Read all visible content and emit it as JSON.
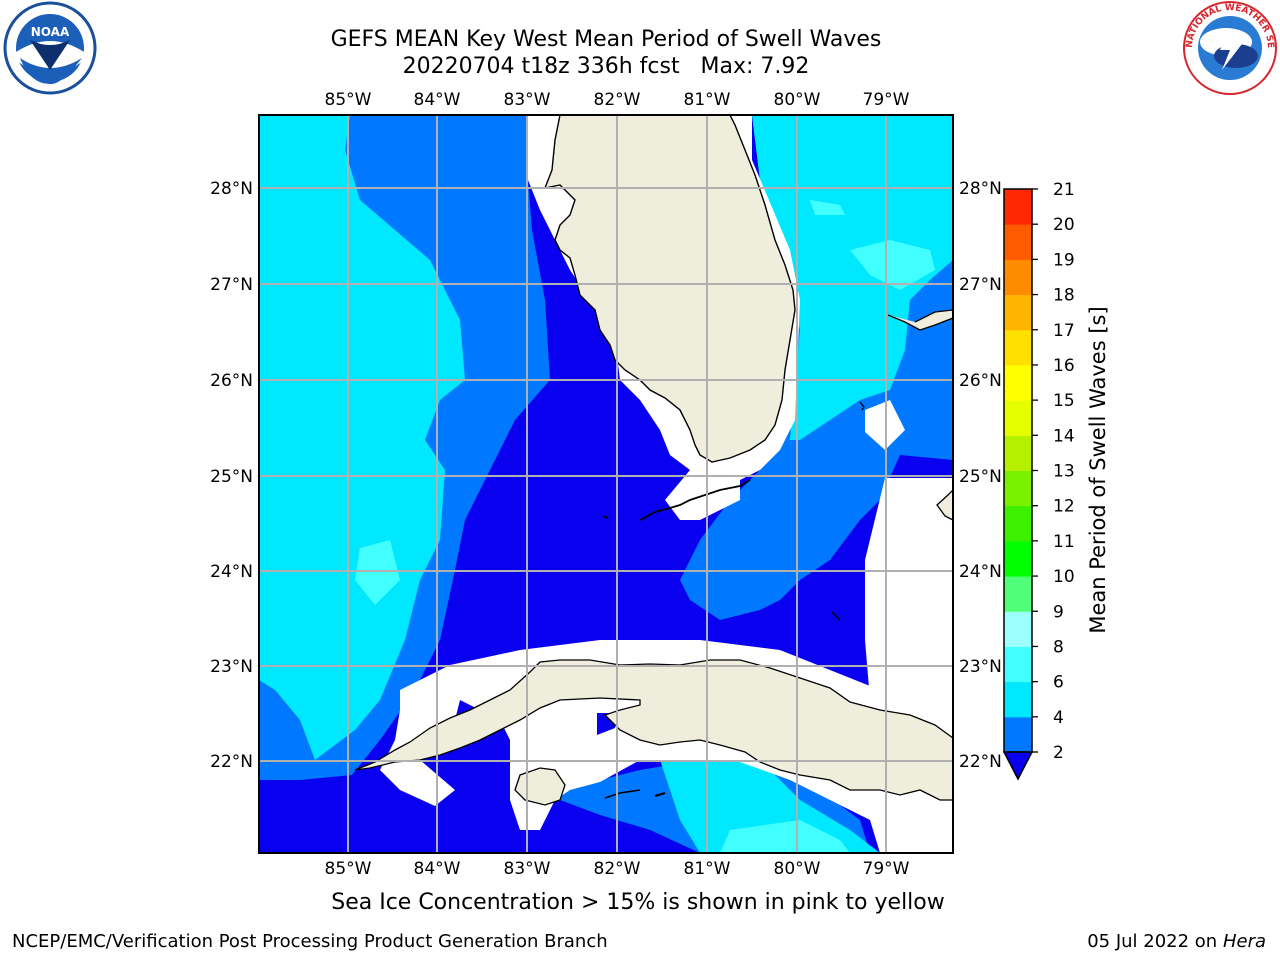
{
  "header": {
    "title_line1": "GEFS MEAN Key West Mean Period of Swell Waves",
    "title_line2": "20220704 t18z 336h fcst   Max: 7.92"
  },
  "logos": {
    "left": {
      "icon": "noaa-logo-icon",
      "text": "NOAA"
    },
    "right": {
      "icon": "nws-logo-icon",
      "text": "NATIONAL WEATHER SERVICE"
    }
  },
  "map": {
    "lon_labels": [
      "85°W",
      "84°W",
      "83°W",
      "82°W",
      "81°W",
      "80°W",
      "79°W"
    ],
    "lat_labels": [
      "28°N",
      "27°N",
      "26°N",
      "25°N",
      "24°N",
      "23°N",
      "22°N"
    ],
    "colors": {
      "land": "#efeedd",
      "no_data": "#ffffff",
      "gridline": "#b0b0b0",
      "coastline": "#000000"
    }
  },
  "colorbar": {
    "label": "Mean Period of Swell Waves [s]",
    "ticks": [
      "2",
      "4",
      "6",
      "8",
      "9",
      "10",
      "11",
      "12",
      "13",
      "14",
      "15",
      "16",
      "17",
      "18",
      "19",
      "20",
      "21"
    ],
    "colors": [
      "#0a00f0",
      "#0078ff",
      "#00e8ff",
      "#42ffff",
      "#9effff",
      "#50ff78",
      "#00ff00",
      "#3cf000",
      "#78f000",
      "#b4f000",
      "#e6ff00",
      "#ffff00",
      "#ffe000",
      "#ffb400",
      "#ff8c00",
      "#ff5a00",
      "#ff2800",
      "#ff0000"
    ]
  },
  "footer": {
    "caption": "Sea Ice Concentration > 15% is shown in pink to yellow",
    "left": "NCEP/EMC/Verification Post Processing Product Generation Branch",
    "date": "05 Jul 2022 on ",
    "machine": "Hera"
  }
}
